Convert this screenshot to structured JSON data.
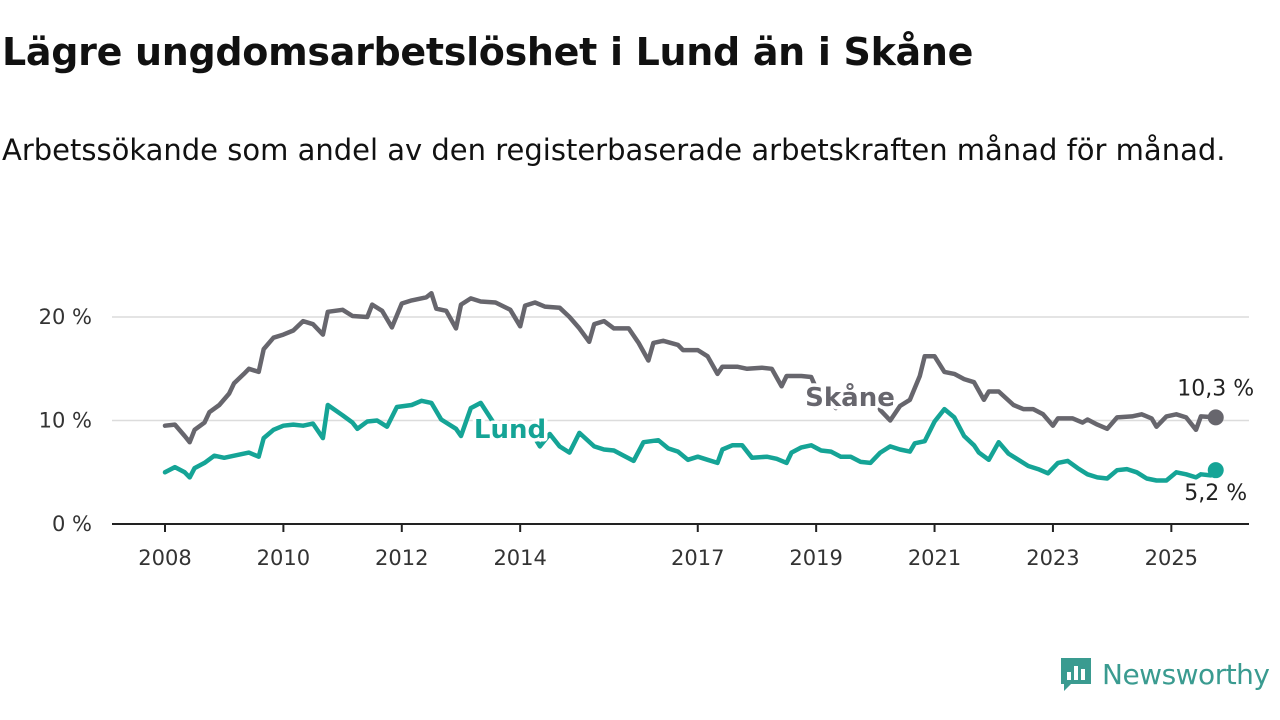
{
  "title": "Lägre ungdomsarbetslöshet i Lund än i Skåne",
  "subtitle": "Arbetssökande som andel av den registerbaserade arbetskraften månad för månad.",
  "brand": {
    "name": "Newsworthy"
  },
  "chart_data": {
    "type": "line",
    "title": "Lägre ungdomsarbetslöshet i Lund än i Skåne",
    "subtitle": "Arbetssökande som andel av den registerbaserade arbetskraften månad för månad.",
    "x_ticks": [
      "2008",
      "2010",
      "2012",
      "2014",
      "2017",
      "2019",
      "2021",
      "2023",
      "2025"
    ],
    "y_ticks": [
      "0 %",
      "10 %",
      "20 %"
    ],
    "ylim": [
      0,
      22.5
    ],
    "xlim": [
      "2008-01",
      "2025-06"
    ],
    "grid": true,
    "legend": "inline labels",
    "series": [
      {
        "name": "Skåne",
        "color": "#67666d",
        "end_label": "10,3 %",
        "points": [
          [
            "2008-01",
            9.5
          ],
          [
            "2008-03",
            9.6
          ],
          [
            "2008-05",
            8.5
          ],
          [
            "2008-06",
            7.9
          ],
          [
            "2008-07",
            9.1
          ],
          [
            "2008-09",
            9.8
          ],
          [
            "2008-10",
            10.8
          ],
          [
            "2008-12",
            11.5
          ],
          [
            "2009-02",
            12.6
          ],
          [
            "2009-03",
            13.6
          ],
          [
            "2009-05",
            14.5
          ],
          [
            "2009-06",
            15.0
          ],
          [
            "2009-08",
            14.7
          ],
          [
            "2009-09",
            16.9
          ],
          [
            "2009-11",
            18.0
          ],
          [
            "2010-01",
            18.3
          ],
          [
            "2010-03",
            18.7
          ],
          [
            "2010-05",
            19.6
          ],
          [
            "2010-07",
            19.3
          ],
          [
            "2010-09",
            18.3
          ],
          [
            "2010-10",
            20.5
          ],
          [
            "2011-01",
            20.7
          ],
          [
            "2011-03",
            20.1
          ],
          [
            "2011-06",
            20.0
          ],
          [
            "2011-07",
            21.2
          ],
          [
            "2011-09",
            20.6
          ],
          [
            "2011-11",
            19.0
          ],
          [
            "2012-01",
            21.3
          ],
          [
            "2012-03",
            21.6
          ],
          [
            "2012-06",
            21.9
          ],
          [
            "2012-07",
            22.3
          ],
          [
            "2012-08",
            20.8
          ],
          [
            "2012-10",
            20.6
          ],
          [
            "2012-12",
            18.9
          ],
          [
            "2013-01",
            21.2
          ],
          [
            "2013-03",
            21.8
          ],
          [
            "2013-05",
            21.5
          ],
          [
            "2013-08",
            21.4
          ],
          [
            "2013-11",
            20.7
          ],
          [
            "2014-01",
            19.1
          ],
          [
            "2014-02",
            21.1
          ],
          [
            "2014-04",
            21.4
          ],
          [
            "2014-06",
            21.0
          ],
          [
            "2014-09",
            20.9
          ],
          [
            "2014-11",
            20.0
          ],
          [
            "2015-01",
            18.9
          ],
          [
            "2015-03",
            17.6
          ],
          [
            "2015-04",
            19.3
          ],
          [
            "2015-06",
            19.6
          ],
          [
            "2015-08",
            18.9
          ],
          [
            "2015-11",
            18.9
          ],
          [
            "2016-01",
            17.5
          ],
          [
            "2016-03",
            15.8
          ],
          [
            "2016-04",
            17.5
          ],
          [
            "2016-06",
            17.7
          ],
          [
            "2016-09",
            17.3
          ],
          [
            "2016-10",
            16.8
          ],
          [
            "2017-01",
            16.8
          ],
          [
            "2017-03",
            16.2
          ],
          [
            "2017-05",
            14.5
          ],
          [
            "2017-06",
            15.2
          ],
          [
            "2017-09",
            15.2
          ],
          [
            "2017-11",
            15.0
          ],
          [
            "2018-02",
            15.1
          ],
          [
            "2018-04",
            15.0
          ],
          [
            "2018-06",
            13.3
          ],
          [
            "2018-07",
            14.3
          ],
          [
            "2018-10",
            14.3
          ],
          [
            "2018-12",
            14.2
          ],
          [
            "2019-01",
            13.1
          ],
          [
            "2019-03",
            12.8
          ],
          [
            "2019-05",
            11.2
          ],
          [
            "2019-06",
            12.2
          ],
          [
            "2019-08",
            12.5
          ],
          [
            "2019-10",
            12.0
          ],
          [
            "2020-01",
            12.4
          ],
          [
            "2020-02",
            11.0
          ],
          [
            "2020-04",
            10.0
          ],
          [
            "2020-06",
            11.4
          ],
          [
            "2020-08",
            12.0
          ],
          [
            "2020-10",
            14.3
          ],
          [
            "2020-11",
            16.2
          ],
          [
            "2021-01",
            16.2
          ],
          [
            "2021-03",
            14.7
          ],
          [
            "2021-05",
            14.5
          ],
          [
            "2021-07",
            14.0
          ],
          [
            "2021-09",
            13.7
          ],
          [
            "2021-11",
            12.0
          ],
          [
            "2021-12",
            12.8
          ],
          [
            "2022-02",
            12.8
          ],
          [
            "2022-05",
            11.5
          ],
          [
            "2022-07",
            11.1
          ],
          [
            "2022-09",
            11.1
          ],
          [
            "2022-11",
            10.6
          ],
          [
            "2023-01",
            9.5
          ],
          [
            "2023-02",
            10.2
          ],
          [
            "2023-05",
            10.2
          ],
          [
            "2023-07",
            9.8
          ],
          [
            "2023-08",
            10.1
          ],
          [
            "2023-10",
            9.6
          ],
          [
            "2023-12",
            9.2
          ],
          [
            "2024-02",
            10.3
          ],
          [
            "2024-05",
            10.4
          ],
          [
            "2024-07",
            10.6
          ],
          [
            "2024-09",
            10.2
          ],
          [
            "2024-10",
            9.4
          ],
          [
            "2024-12",
            10.4
          ],
          [
            "2025-02",
            10.6
          ],
          [
            "2025-04",
            10.3
          ],
          [
            "2025-06",
            9.1
          ],
          [
            "2025-07",
            10.4
          ],
          [
            "2025-10",
            10.3
          ]
        ]
      },
      {
        "name": "Lund",
        "color": "#15a496",
        "end_label": "5,2 %",
        "points": [
          [
            "2008-01",
            5.0
          ],
          [
            "2008-03",
            5.5
          ],
          [
            "2008-05",
            5.0
          ],
          [
            "2008-06",
            4.5
          ],
          [
            "2008-07",
            5.4
          ],
          [
            "2008-09",
            5.9
          ],
          [
            "2008-11",
            6.6
          ],
          [
            "2009-01",
            6.4
          ],
          [
            "2009-03",
            6.6
          ],
          [
            "2009-06",
            6.9
          ],
          [
            "2009-08",
            6.5
          ],
          [
            "2009-09",
            8.3
          ],
          [
            "2009-11",
            9.1
          ],
          [
            "2010-01",
            9.5
          ],
          [
            "2010-03",
            9.6
          ],
          [
            "2010-05",
            9.5
          ],
          [
            "2010-07",
            9.7
          ],
          [
            "2010-09",
            8.3
          ],
          [
            "2010-10",
            11.5
          ],
          [
            "2011-01",
            10.5
          ],
          [
            "2011-03",
            9.8
          ],
          [
            "2011-04",
            9.2
          ],
          [
            "2011-06",
            9.9
          ],
          [
            "2011-08",
            10.0
          ],
          [
            "2011-10",
            9.4
          ],
          [
            "2011-12",
            11.3
          ],
          [
            "2012-03",
            11.5
          ],
          [
            "2012-05",
            11.9
          ],
          [
            "2012-07",
            11.7
          ],
          [
            "2012-09",
            10.1
          ],
          [
            "2012-12",
            9.2
          ],
          [
            "2013-01",
            8.5
          ],
          [
            "2013-03",
            11.2
          ],
          [
            "2013-05",
            11.7
          ],
          [
            "2013-08",
            9.5
          ],
          [
            "2013-10",
            8.5
          ],
          [
            "2013-12",
            8.5
          ],
          [
            "2014-01",
            9.4
          ],
          [
            "2014-03",
            9.1
          ],
          [
            "2014-05",
            7.5
          ],
          [
            "2014-07",
            8.7
          ],
          [
            "2014-09",
            7.5
          ],
          [
            "2014-11",
            6.9
          ],
          [
            "2015-01",
            8.8
          ],
          [
            "2015-04",
            7.5
          ],
          [
            "2015-06",
            7.2
          ],
          [
            "2015-08",
            7.1
          ],
          [
            "2015-10",
            6.6
          ],
          [
            "2015-12",
            6.1
          ],
          [
            "2016-02",
            7.9
          ],
          [
            "2016-05",
            8.1
          ],
          [
            "2016-07",
            7.3
          ],
          [
            "2016-09",
            7.0
          ],
          [
            "2016-11",
            6.2
          ],
          [
            "2017-01",
            6.5
          ],
          [
            "2017-03",
            6.2
          ],
          [
            "2017-05",
            5.9
          ],
          [
            "2017-06",
            7.2
          ],
          [
            "2017-08",
            7.6
          ],
          [
            "2017-10",
            7.6
          ],
          [
            "2017-12",
            6.4
          ],
          [
            "2018-03",
            6.5
          ],
          [
            "2018-05",
            6.3
          ],
          [
            "2018-07",
            5.9
          ],
          [
            "2018-08",
            6.9
          ],
          [
            "2018-10",
            7.4
          ],
          [
            "2018-12",
            7.6
          ],
          [
            "2019-02",
            7.1
          ],
          [
            "2019-04",
            7.0
          ],
          [
            "2019-06",
            6.5
          ],
          [
            "2019-08",
            6.5
          ],
          [
            "2019-10",
            6.0
          ],
          [
            "2019-12",
            5.9
          ],
          [
            "2020-02",
            6.9
          ],
          [
            "2020-04",
            7.5
          ],
          [
            "2020-06",
            7.2
          ],
          [
            "2020-08",
            7.0
          ],
          [
            "2020-09",
            7.8
          ],
          [
            "2020-11",
            8.0
          ],
          [
            "2021-01",
            9.9
          ],
          [
            "2021-03",
            11.1
          ],
          [
            "2021-05",
            10.3
          ],
          [
            "2021-07",
            8.5
          ],
          [
            "2021-09",
            7.6
          ],
          [
            "2021-10",
            6.9
          ],
          [
            "2021-12",
            6.2
          ],
          [
            "2022-02",
            7.9
          ],
          [
            "2022-04",
            6.8
          ],
          [
            "2022-06",
            6.2
          ],
          [
            "2022-08",
            5.6
          ],
          [
            "2022-10",
            5.3
          ],
          [
            "2022-12",
            4.9
          ],
          [
            "2023-02",
            5.9
          ],
          [
            "2023-04",
            6.1
          ],
          [
            "2023-06",
            5.4
          ],
          [
            "2023-08",
            4.8
          ],
          [
            "2023-10",
            4.5
          ],
          [
            "2023-12",
            4.4
          ],
          [
            "2024-02",
            5.2
          ],
          [
            "2024-04",
            5.3
          ],
          [
            "2024-06",
            5.0
          ],
          [
            "2024-08",
            4.4
          ],
          [
            "2024-10",
            4.2
          ],
          [
            "2024-12",
            4.2
          ],
          [
            "2025-02",
            5.0
          ],
          [
            "2025-04",
            4.8
          ],
          [
            "2025-06",
            4.5
          ],
          [
            "2025-07",
            4.8
          ],
          [
            "2025-09",
            4.7
          ],
          [
            "2025-10",
            5.2
          ]
        ]
      }
    ]
  }
}
